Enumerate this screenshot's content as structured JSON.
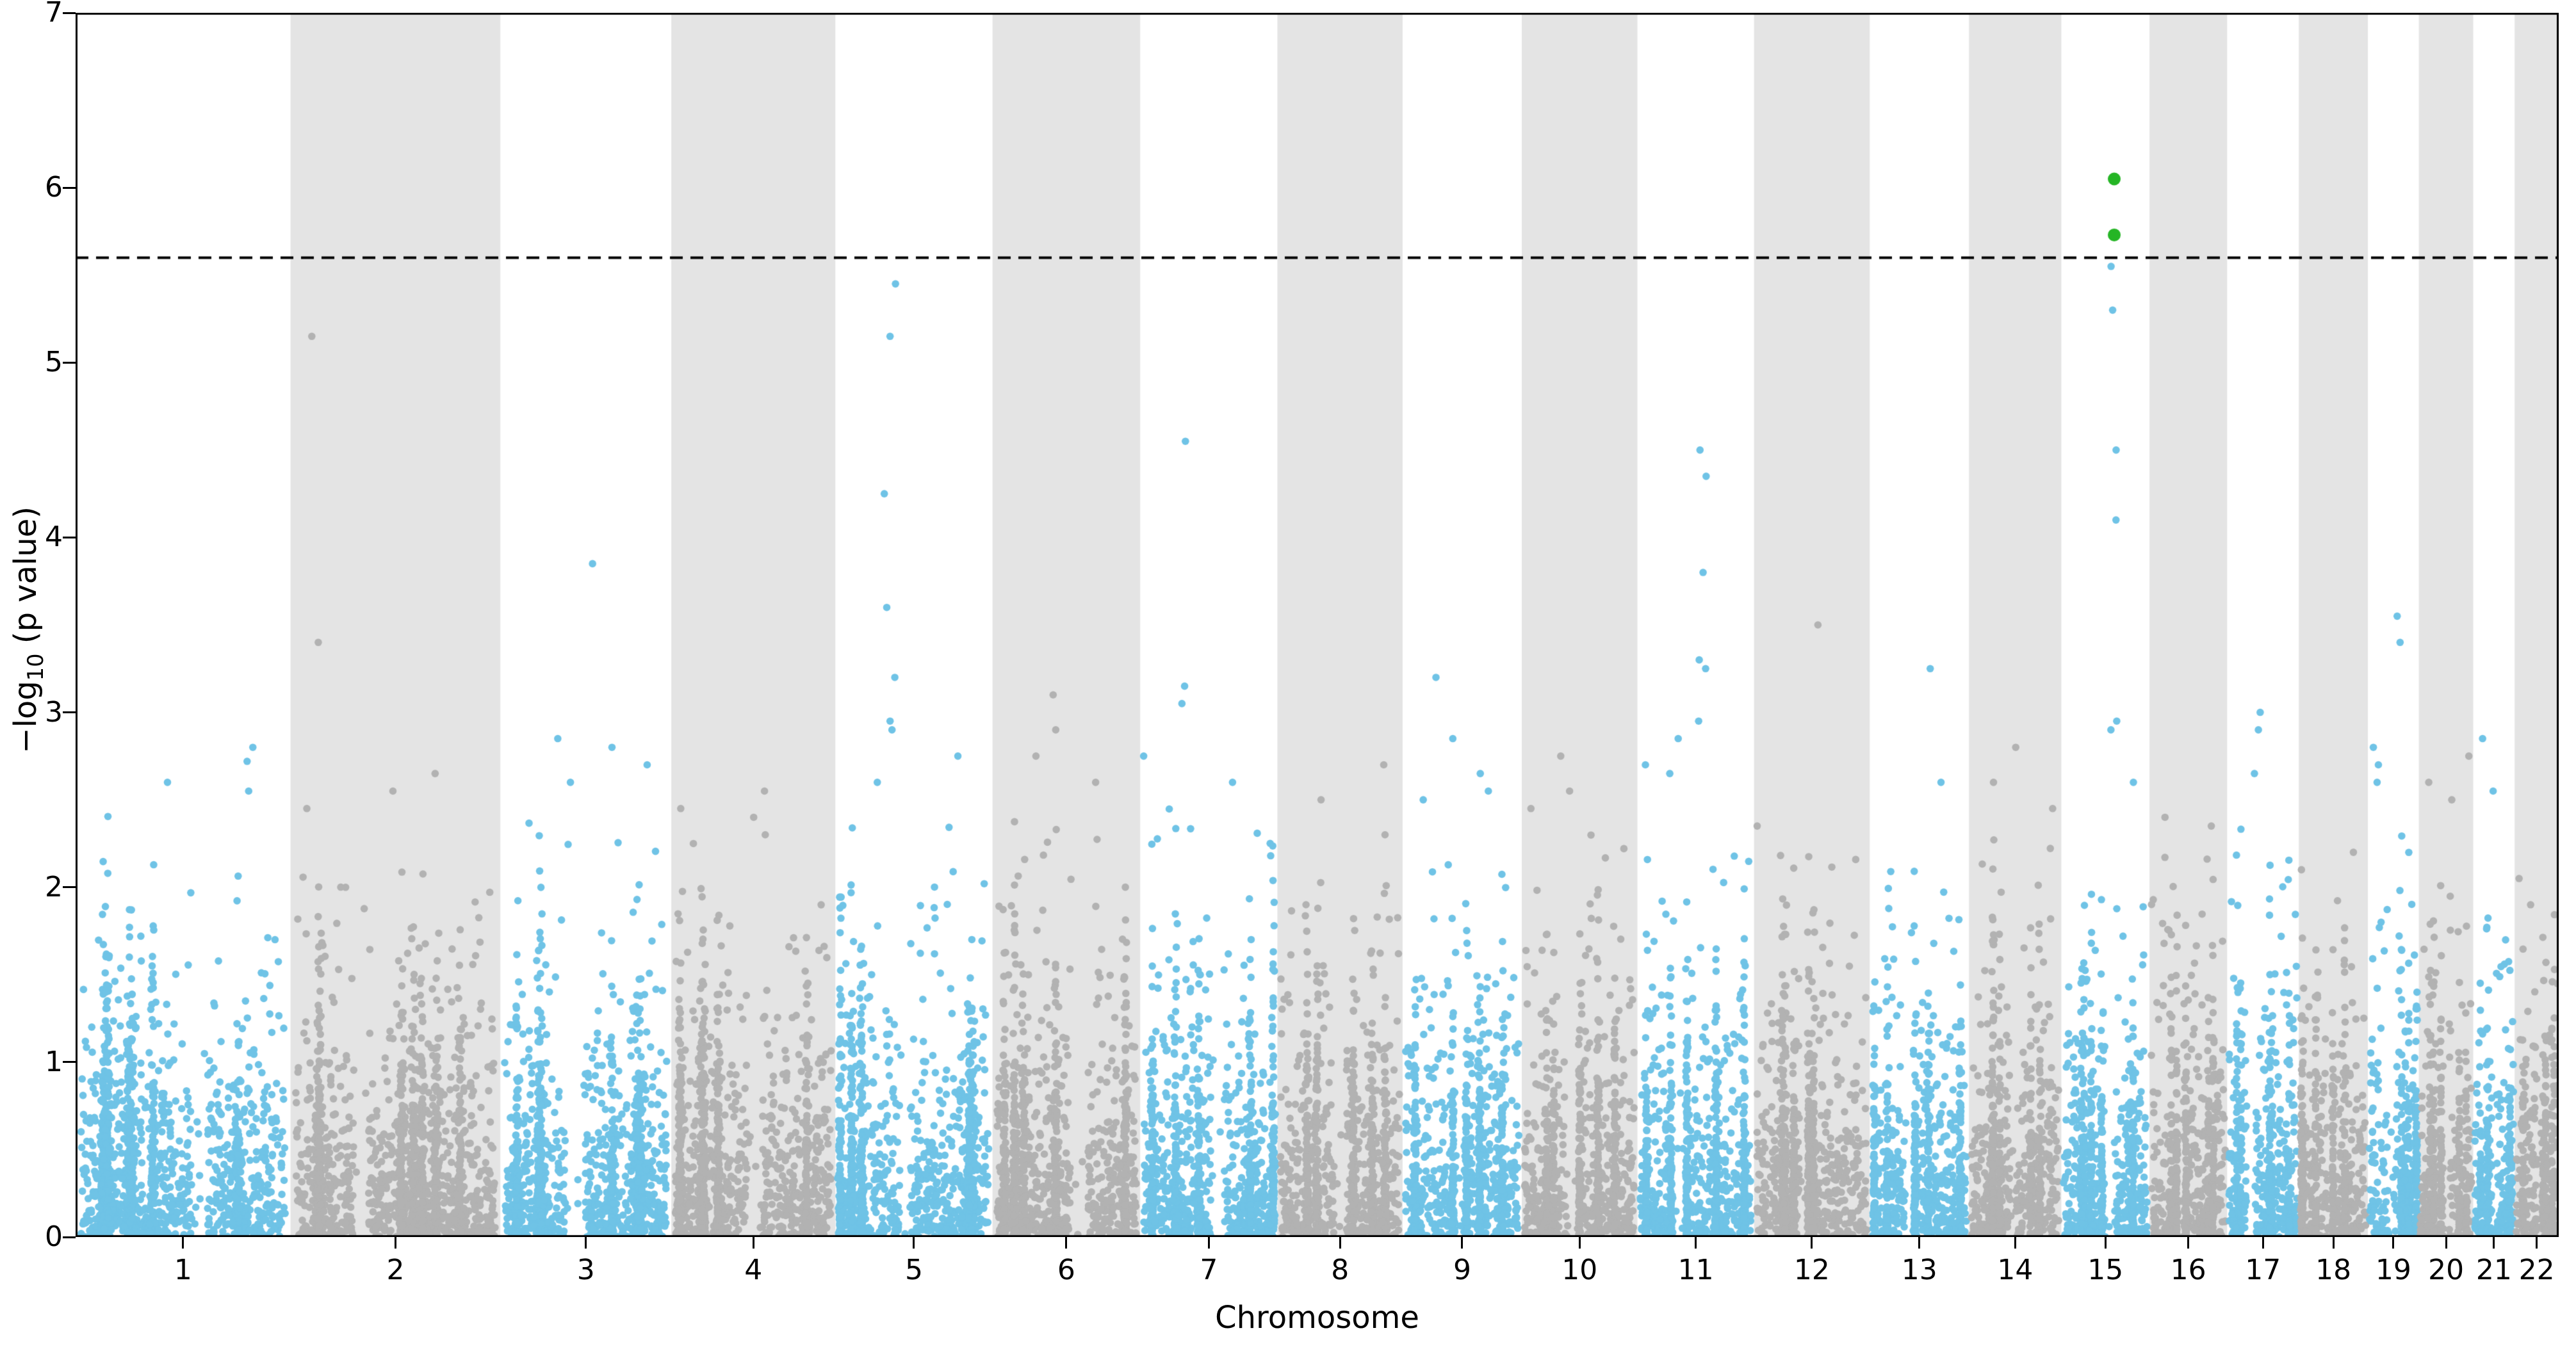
{
  "chart_data": {
    "type": "scatter",
    "subtype": "manhattan",
    "title": "",
    "xlabel": "Chromosome",
    "ylabel_plain": "−log10 (p value)",
    "ylabel_parts": {
      "pre": "−log",
      "sub": "10",
      "post": " (p value)"
    },
    "ylim": [
      0,
      7
    ],
    "yticks": [
      "0",
      "1",
      "2",
      "3",
      "4",
      "5",
      "6",
      "7"
    ],
    "grid": false,
    "legend": "none",
    "threshold_line": {
      "y": 5.6,
      "style": "dashed",
      "color": "#000000"
    },
    "colors": {
      "odd_chromosome_points": "#6fc3e6",
      "even_chromosome_points": "#b2b2b2",
      "even_chromosome_band": "#e4e4e4",
      "significant_points": "#25b525",
      "axis": "#000000",
      "background": "#ffffff"
    },
    "significant_points": {
      "chromosome": "15",
      "values": [
        6.05,
        5.73
      ]
    },
    "chromosomes": [
      {
        "label": "1",
        "size": 249,
        "cap": 2.45,
        "hotspot": 0.3,
        "peaks": [
          2.8,
          2.72,
          2.6,
          2.55
        ]
      },
      {
        "label": "2",
        "size": 243,
        "cap": 2.1,
        "hotspot": 0.1,
        "peaks": [
          5.15,
          3.4,
          2.65,
          2.55,
          2.45
        ]
      },
      {
        "label": "3",
        "size": 198,
        "cap": 2.45,
        "hotspot": 0.55,
        "peaks": [
          3.85,
          2.85,
          2.8,
          2.7,
          2.6
        ]
      },
      {
        "label": "4",
        "size": 190,
        "cap": 2.0,
        "hotspot": 0.4,
        "peaks": [
          2.55,
          2.45,
          2.4,
          2.3,
          2.25
        ]
      },
      {
        "label": "5",
        "size": 182,
        "cap": 2.35,
        "hotspot": 0.35,
        "peaks": [
          5.45,
          5.15,
          4.25,
          3.6,
          3.2,
          2.95,
          2.9,
          2.75,
          2.6
        ]
      },
      {
        "label": "6",
        "size": 171,
        "cap": 2.5,
        "hotspot": 0.45,
        "peaks": [
          3.1,
          2.9,
          2.75,
          2.6
        ]
      },
      {
        "label": "7",
        "size": 159,
        "cap": 2.45,
        "hotspot": 0.3,
        "peaks": [
          4.55,
          3.15,
          3.05,
          2.75,
          2.6
        ]
      },
      {
        "label": "8",
        "size": 145,
        "cap": 2.15,
        "hotspot": 0.5,
        "peaks": [
          2.7,
          2.5,
          2.3
        ]
      },
      {
        "label": "9",
        "size": 138,
        "cap": 2.25,
        "hotspot": 0.3,
        "peaks": [
          3.2,
          2.85,
          2.65,
          2.55,
          2.5
        ]
      },
      {
        "label": "10",
        "size": 134,
        "cap": 2.3,
        "hotspot": 0.5,
        "peaks": [
          2.75,
          2.55,
          2.45
        ]
      },
      {
        "label": "11",
        "size": 135,
        "cap": 2.35,
        "hotspot": 0.55,
        "peaks": [
          4.5,
          4.35,
          3.8,
          3.3,
          3.25,
          2.95,
          2.85,
          2.7,
          2.65
        ]
      },
      {
        "label": "12",
        "size": 134,
        "cap": 2.25,
        "hotspot": 0.55,
        "peaks": [
          3.5,
          2.35
        ]
      },
      {
        "label": "13",
        "size": 115,
        "cap": 2.1,
        "hotspot": 0.62,
        "peaks": [
          3.25,
          2.6
        ]
      },
      {
        "label": "14",
        "size": 107,
        "cap": 2.35,
        "hotspot": 0.5,
        "peaks": [
          2.8,
          2.6,
          2.45
        ]
      },
      {
        "label": "15",
        "size": 102,
        "cap": 2.25,
        "hotspot": 0.6,
        "peaks": [
          5.55,
          5.3,
          4.5,
          4.1,
          2.95,
          2.9,
          2.6
        ]
      },
      {
        "label": "16",
        "size": 90,
        "cap": 2.2,
        "hotspot": 0.5,
        "peaks": [
          2.4,
          2.35
        ]
      },
      {
        "label": "17",
        "size": 83,
        "cap": 2.35,
        "hotspot": 0.45,
        "peaks": [
          3.0,
          2.9,
          2.65
        ]
      },
      {
        "label": "18",
        "size": 80,
        "cap": 1.95,
        "hotspot": 0.5,
        "peaks": [
          2.2,
          2.1
        ]
      },
      {
        "label": "19",
        "size": 59,
        "cap": 2.3,
        "hotspot": 0.6,
        "peaks": [
          3.55,
          3.4,
          2.8,
          2.7,
          2.6
        ]
      },
      {
        "label": "20",
        "size": 63,
        "cap": 2.35,
        "hotspot": 0.5,
        "peaks": [
          2.75,
          2.6,
          2.5
        ]
      },
      {
        "label": "21",
        "size": 48,
        "cap": 2.25,
        "hotspot": 0.5,
        "peaks": [
          2.85,
          2.55
        ]
      },
      {
        "label": "22",
        "size": 51,
        "cap": 1.85,
        "hotspot": 0.5,
        "peaks": [
          2.05,
          1.9
        ]
      }
    ]
  }
}
